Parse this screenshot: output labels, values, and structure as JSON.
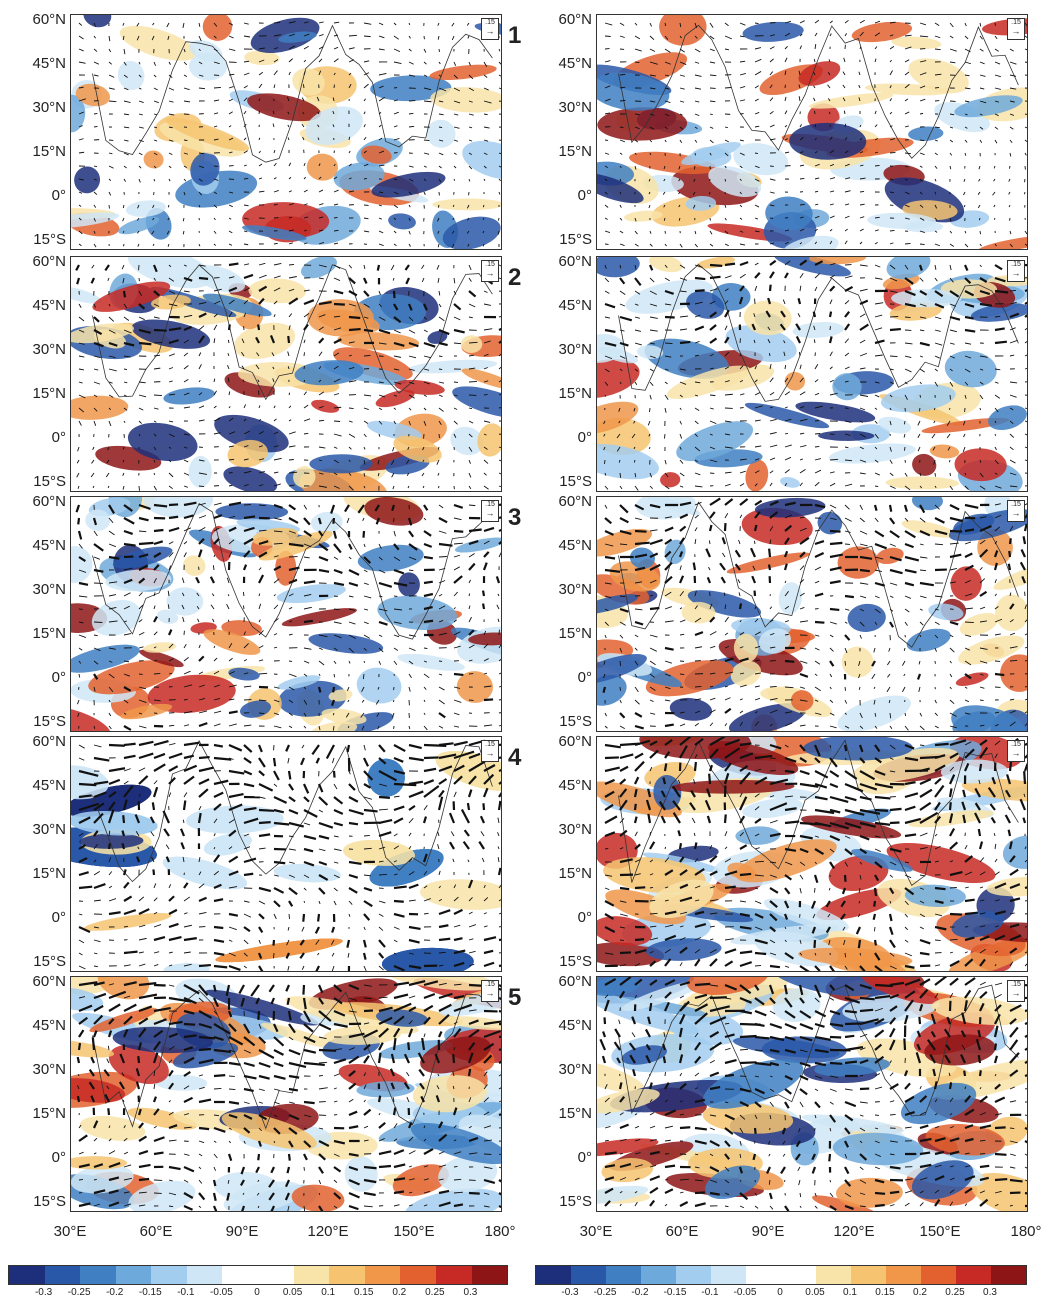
{
  "row_labels": [
    "1",
    "2",
    "3",
    "4",
    "5"
  ],
  "lat_labels": [
    "60°N",
    "45°N",
    "30°N",
    "15°N",
    "0°",
    "15°S"
  ],
  "lon_labels": [
    "30°E",
    "60°E",
    "90°E",
    "120°E",
    "150°E",
    "180°"
  ],
  "reference_vector_label": ".15",
  "colorbar": {
    "ticks": [
      "-0.3",
      "-0.25",
      "-0.2",
      "-0.15",
      "-0.1",
      "-0.05",
      "0",
      "0.05",
      "0.1",
      "0.15",
      "0.2",
      "0.25",
      "0.3"
    ],
    "colors": [
      "#1d2f7a",
      "#2a58a8",
      "#3f7fc2",
      "#6ea9db",
      "#a2cdee",
      "#cfe6f6",
      "#ffffff",
      "#ffffff",
      "#f8e3a8",
      "#f6c471",
      "#f0974a",
      "#e3612f",
      "#c72a25",
      "#8e1516"
    ]
  }
}
